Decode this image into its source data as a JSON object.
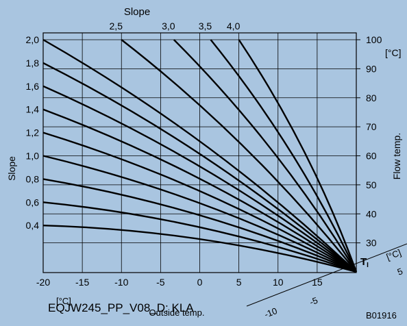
{
  "chart_data": {
    "type": "line",
    "background": "#a9c5e0",
    "grid": true,
    "top_title": "Slope",
    "left_axis_title": "Slope",
    "right_axis_title": "Flow temp.",
    "right_axis_unit": "[°C]",
    "x_axis_title": "Outside temp.",
    "x_axis_unit": "[°C]",
    "x_ticks": [
      -20,
      -15,
      -10,
      -5,
      0,
      5,
      10,
      15
    ],
    "x_tick_labels": [
      "-20",
      "-15",
      "-10",
      "-5",
      "0",
      "5",
      "10",
      "15"
    ],
    "xlim": [
      -20,
      20
    ],
    "right_ticks": [
      30,
      40,
      50,
      60,
      70,
      80,
      90,
      100
    ],
    "right_tick_labels": [
      "30",
      "40",
      "50",
      "60",
      "70",
      "80",
      "90",
      "100"
    ],
    "ylim": [
      20,
      100
    ],
    "room_temp_axis": {
      "label": "T",
      "label_subscript": "I",
      "unit": "[°C]",
      "tick_labels": [
        "-10",
        "-5",
        "5"
      ]
    },
    "origin": {
      "x": 20,
      "y": 20
    },
    "series": [
      {
        "slope": 0.4,
        "values": [
          [
            -20,
            36
          ],
          [
            20,
            20
          ]
        ]
      },
      {
        "slope": 0.6,
        "values": [
          [
            -20,
            44
          ],
          [
            20,
            20
          ]
        ]
      },
      {
        "slope": 0.8,
        "values": [
          [
            -20,
            52
          ],
          [
            20,
            20
          ]
        ]
      },
      {
        "slope": 1.0,
        "values": [
          [
            -20,
            60
          ],
          [
            20,
            20
          ]
        ]
      },
      {
        "slope": 1.2,
        "values": [
          [
            -20,
            68
          ],
          [
            20,
            20
          ]
        ]
      },
      {
        "slope": 1.4,
        "values": [
          [
            -20,
            76
          ],
          [
            20,
            20
          ]
        ]
      },
      {
        "slope": 1.6,
        "values": [
          [
            -20,
            84
          ],
          [
            20,
            20
          ]
        ]
      },
      {
        "slope": 1.8,
        "values": [
          [
            -20,
            92
          ],
          [
            20,
            20
          ]
        ]
      },
      {
        "slope": 2.0,
        "values": [
          [
            -20,
            100
          ],
          [
            20,
            20
          ]
        ]
      },
      {
        "slope": 2.5,
        "values": [
          [
            -10,
            100
          ],
          [
            20,
            20
          ]
        ]
      },
      {
        "slope": 3.0,
        "values": [
          [
            -3.3,
            100
          ],
          [
            20,
            20
          ]
        ]
      },
      {
        "slope": 3.5,
        "values": [
          [
            1.4,
            100
          ],
          [
            20,
            20
          ]
        ]
      },
      {
        "slope": 4.0,
        "values": [
          [
            5,
            100
          ],
          [
            20,
            20
          ]
        ]
      }
    ],
    "left_tick_labels": [
      "2,0",
      "1,8",
      "1,6",
      "1,4",
      "1,2",
      "1,0",
      "0,8",
      "0,6",
      "0,4"
    ],
    "top_tick_labels": [
      "2,5",
      "3,0",
      "3,5",
      "4,0"
    ]
  },
  "footer": {
    "source_label": "EQJW245_PP_V08_D;  KLA",
    "figure_code": "B01916"
  }
}
